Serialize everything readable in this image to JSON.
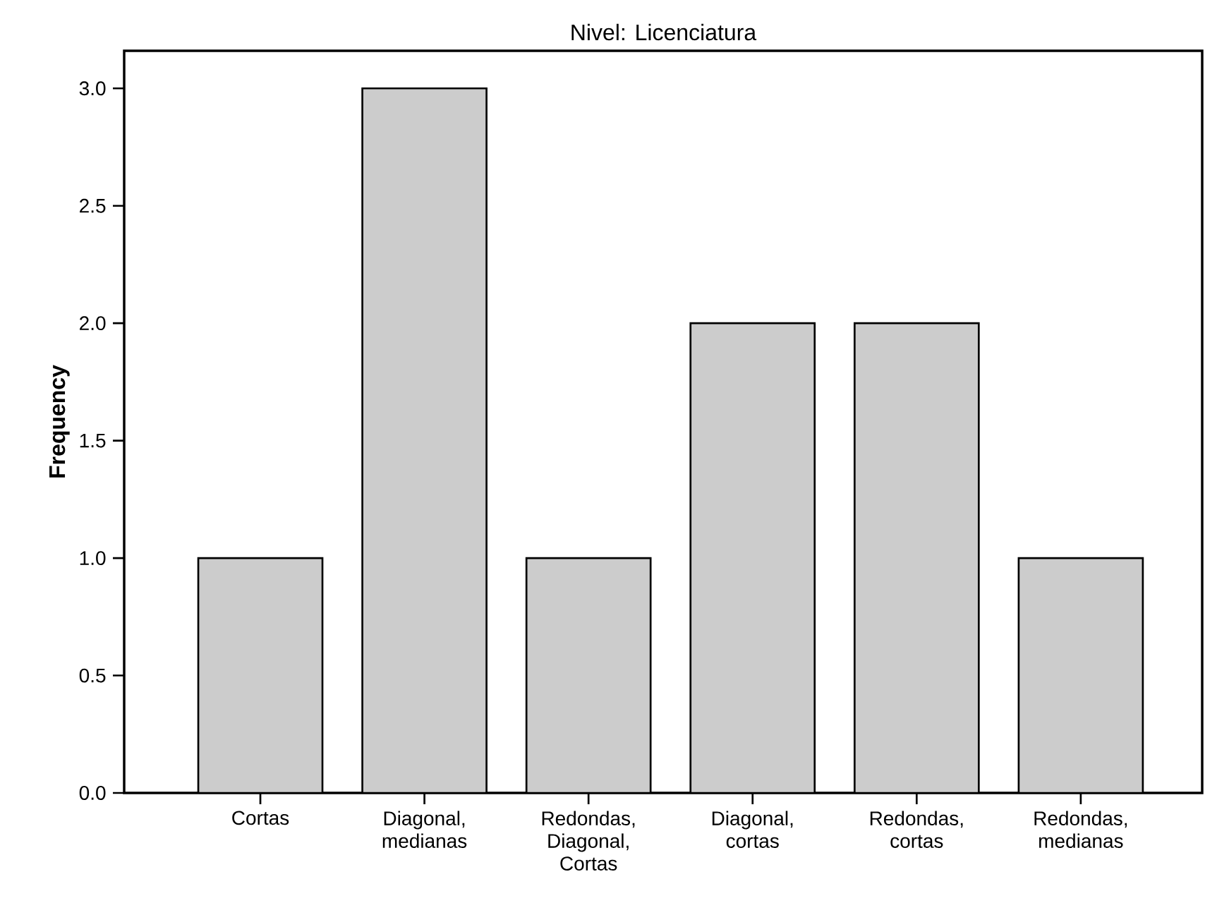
{
  "chart_data": {
    "type": "bar",
    "title": "Nivel: Licenciatura",
    "ylabel": "Frequency",
    "categories": [
      "Cortas",
      "Diagonal, medianas",
      "Redondas, Diagonal, Cortas",
      "Diagonal, cortas",
      "Redondas, cortas",
      "Redondas, medianas"
    ],
    "values": [
      1,
      3,
      1,
      2,
      2,
      1
    ],
    "color": "#cccccc",
    "ylim": [
      0,
      3.16
    ],
    "yticks": [
      {
        "value": 0,
        "label": "0.0"
      },
      0.5,
      {
        "value": 1,
        "label": "1.0"
      },
      1.5,
      {
        "value": 2,
        "label": "2.0"
      },
      2.5,
      {
        "value": 3,
        "label": "3.0"
      }
    ]
  }
}
